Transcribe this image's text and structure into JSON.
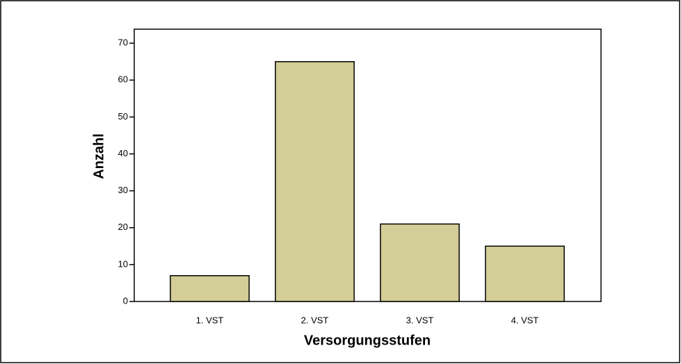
{
  "chart_data": {
    "type": "bar",
    "x_label": "Versorgungsstufen",
    "y_label": "Anzahl",
    "categories": [
      "1. VST",
      "2. VST",
      "3. VST",
      "4. VST"
    ],
    "values": [
      7,
      65,
      21,
      15
    ],
    "color": "#d3cd98",
    "ylim": [
      0,
      73.8
    ],
    "yticks": [
      0,
      10,
      20,
      30,
      40,
      50,
      60,
      70
    ],
    "grid": false
  }
}
